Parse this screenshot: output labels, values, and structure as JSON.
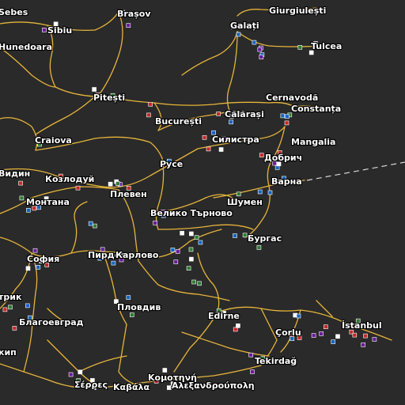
{
  "colors": {
    "background": "#2a2a2a",
    "road": "#e6b43a",
    "ferry": "#d8d8d8",
    "service_icons": [
      "#2e7d32",
      "#1565c0",
      "#c62828",
      "#ffffff",
      "#6a1b9a"
    ]
  },
  "cities": [
    {
      "id": "sebes",
      "name": "Sebes"
    },
    {
      "id": "brasov",
      "name": "Brașov"
    },
    {
      "id": "giurgiulesti",
      "name": "Giurgiulești"
    },
    {
      "id": "sibiu",
      "name": "Sibiu"
    },
    {
      "id": "galati",
      "name": "Galați"
    },
    {
      "id": "hunedoara",
      "name": "Hunedoara"
    },
    {
      "id": "tulcea",
      "name": "Tulcea"
    },
    {
      "id": "pitesti",
      "name": "Pitești"
    },
    {
      "id": "cernavoda",
      "name": "Cernavodă"
    },
    {
      "id": "constanta",
      "name": "Constanța"
    },
    {
      "id": "bucuresti",
      "name": "București"
    },
    {
      "id": "calarasi",
      "name": "Călărași"
    },
    {
      "id": "craiova",
      "name": "Craiova"
    },
    {
      "id": "silistra",
      "name": "Силистра"
    },
    {
      "id": "mangalia",
      "name": "Mangalia"
    },
    {
      "id": "dobrich",
      "name": "Добрич"
    },
    {
      "id": "vidin",
      "name": "Видин"
    },
    {
      "id": "ruse",
      "name": "Русе"
    },
    {
      "id": "kozloduy",
      "name": "Козлодуй"
    },
    {
      "id": "varna",
      "name": "Варна"
    },
    {
      "id": "pleven",
      "name": "Плевен"
    },
    {
      "id": "montana",
      "name": "Монтана"
    },
    {
      "id": "shumen",
      "name": "Шумен"
    },
    {
      "id": "veliko",
      "name": "Велико Търново"
    },
    {
      "id": "burgas",
      "name": "Бургас"
    },
    {
      "id": "sofia",
      "name": "София"
    },
    {
      "id": "pirdop",
      "name": "Пирдоп"
    },
    {
      "id": "karlovo",
      "name": "Карлово"
    },
    {
      "id": "plovdiv",
      "name": "Пловдив"
    },
    {
      "id": "edirne",
      "name": "Edirne"
    },
    {
      "id": "petrich",
      "name": "трик"
    },
    {
      "id": "istanbul",
      "name": "İstanbul"
    },
    {
      "id": "blagoevgrad",
      "name": "Благоевград"
    },
    {
      "id": "corlu",
      "name": "Çorlu"
    },
    {
      "id": "kip",
      "name": "кип"
    },
    {
      "id": "tekirdag",
      "name": "Tekirdağ"
    },
    {
      "id": "komotini",
      "name": "Κομοτηνή"
    },
    {
      "id": "serres",
      "name": "Σέρρες"
    },
    {
      "id": "kavala",
      "name": "Καβάλα"
    },
    {
      "id": "alexandroupoli",
      "name": "Αλεξανδρούπολη"
    }
  ]
}
